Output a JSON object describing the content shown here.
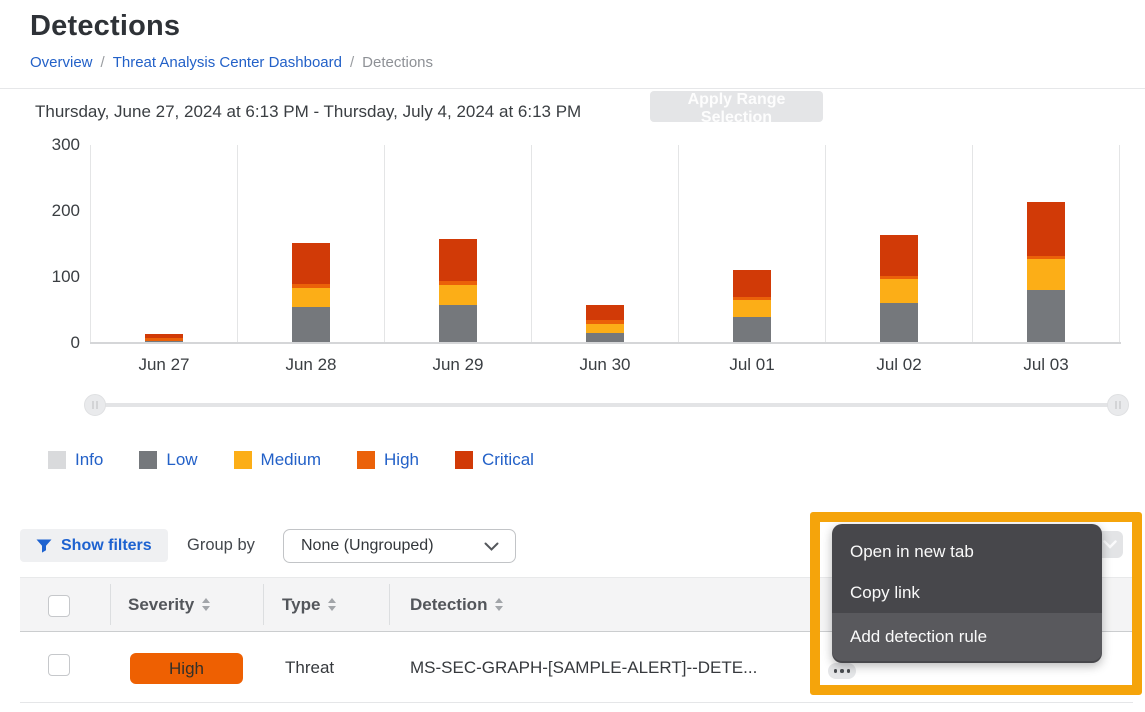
{
  "header": {
    "title": "Detections",
    "breadcrumb": {
      "separator": "/",
      "items": [
        {
          "label": "Overview",
          "link": true
        },
        {
          "label": "Threat Analysis Center Dashboard",
          "link": true
        },
        {
          "label": "Detections",
          "link": false
        }
      ]
    }
  },
  "chart_header": {
    "date_range": "Thursday, June 27, 2024 at 6:13 PM - Thursday, July 4, 2024 at 6:13 PM",
    "apply_button": "Apply Range Selection"
  },
  "chart_data": {
    "type": "bar",
    "stacked": true,
    "categories": [
      "Jun 27",
      "Jun 28",
      "Jun 29",
      "Jun 30",
      "Jul 01",
      "Jul 02",
      "Jul 03"
    ],
    "series": [
      {
        "name": "Info",
        "color": "#d9dadc",
        "values": [
          0,
          0,
          0,
          0,
          0,
          0,
          0
        ]
      },
      {
        "name": "Low",
        "color": "#75787c",
        "values": [
          3,
          54,
          58,
          15,
          40,
          61,
          81
        ]
      },
      {
        "name": "Medium",
        "color": "#fcae17",
        "values": [
          0,
          30,
          30,
          14,
          25,
          36,
          46
        ]
      },
      {
        "name": "High",
        "color": "#eb6109",
        "values": [
          5,
          6,
          6,
          6,
          5,
          5,
          5
        ]
      },
      {
        "name": "Critical",
        "color": "#d13a07",
        "values": [
          5,
          61,
          63,
          23,
          41,
          61,
          81
        ]
      }
    ],
    "totals": [
      13,
      151,
      157,
      58,
      111,
      163,
      213
    ],
    "ylim": [
      0,
      300
    ],
    "yticks": [
      0,
      100,
      200,
      300
    ],
    "grid": "vertical",
    "legend_position": "below-chart"
  },
  "filters": {
    "show_filters_label": "Show filters",
    "group_by_label": "Group by",
    "group_by_value": "None (Ungrouped)"
  },
  "table": {
    "columns": [
      "Severity",
      "Type",
      "Detection"
    ],
    "rows": [
      {
        "severity": "High",
        "severity_color": "#ee6002",
        "type": "Threat",
        "detection": "MS-SEC-GRAPH-[SAMPLE-ALERT]--DETE...",
        "checked": false
      }
    ]
  },
  "row_actions": {
    "more_icon": "ellipsis"
  },
  "context_menu": {
    "items": [
      "Open in new tab",
      "Copy link",
      "Add detection rule"
    ],
    "hovered_index": 2
  },
  "annotation": {
    "highlight_color": "#f5a40b"
  }
}
